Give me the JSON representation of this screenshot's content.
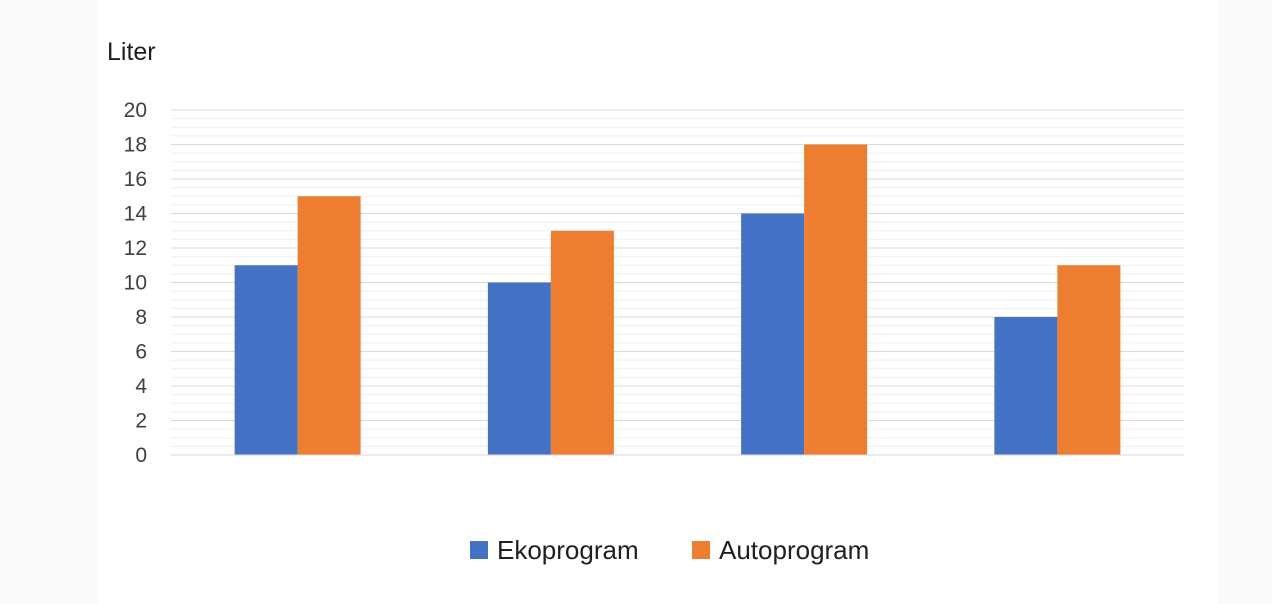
{
  "chart_data": {
    "type": "bar",
    "title": "",
    "xlabel": "",
    "ylabel": "Liter",
    "ylim": [
      0,
      20
    ],
    "yticks": [
      0,
      2,
      4,
      6,
      8,
      10,
      12,
      14,
      16,
      18,
      20
    ],
    "minor_grid_step": 0.5,
    "categories": [
      "",
      "",
      "",
      ""
    ],
    "series": [
      {
        "name": "Ekoprogram",
        "color": "#4472c4",
        "values": [
          11,
          10,
          14,
          8
        ]
      },
      {
        "name": "Autoprogram",
        "color": "#ed7d31",
        "values": [
          15,
          13,
          18,
          11
        ]
      }
    ],
    "grid": true,
    "legend_position": "bottom"
  }
}
